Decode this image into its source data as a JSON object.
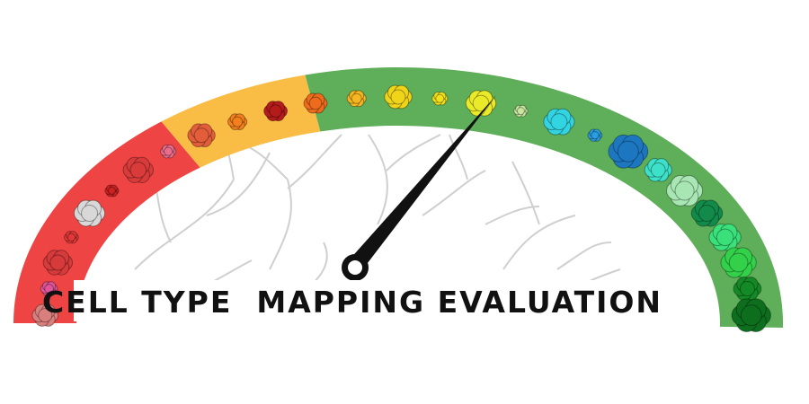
{
  "title": "CELL TYPE  MAPPING EVALUATION"
}
